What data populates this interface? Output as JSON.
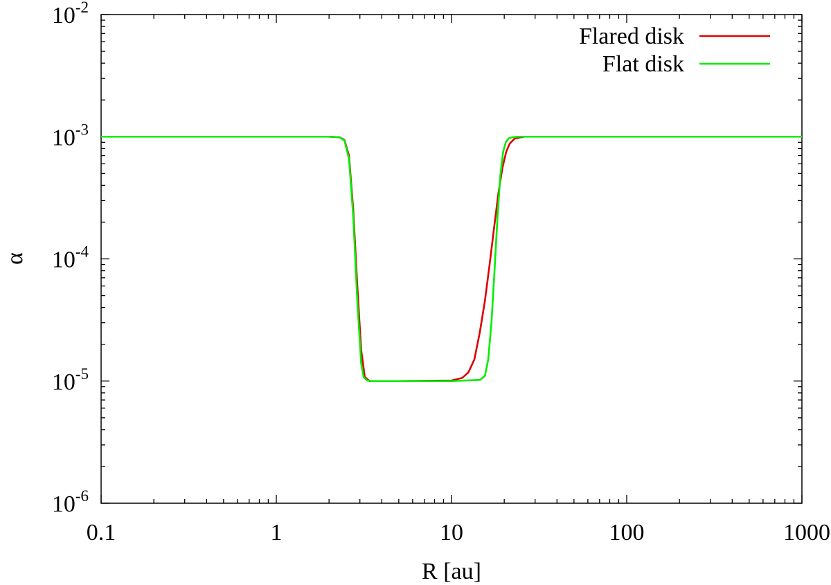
{
  "chart_data": {
    "type": "line",
    "title": "",
    "xlabel": "R [au]",
    "ylabel": "α",
    "xscale": "log",
    "yscale": "log",
    "xlim": [
      0.1,
      1000
    ],
    "ylim": [
      1e-06,
      0.01
    ],
    "grid": false,
    "legend_position": "top-right",
    "x_ticks": [
      {
        "value": 0.1,
        "label": "0.1"
      },
      {
        "value": 1,
        "label": "1"
      },
      {
        "value": 10,
        "label": "10"
      },
      {
        "value": 100,
        "label": "100"
      },
      {
        "value": 1000,
        "label": "1000"
      }
    ],
    "y_ticks": [
      {
        "value": 1e-06,
        "base": "10",
        "exp": "-6"
      },
      {
        "value": 1e-05,
        "base": "10",
        "exp": "-5"
      },
      {
        "value": 0.0001,
        "base": "10",
        "exp": "-4"
      },
      {
        "value": 0.001,
        "base": "10",
        "exp": "-3"
      },
      {
        "value": 0.01,
        "base": "10",
        "exp": "-2"
      }
    ],
    "series": [
      {
        "name": "Flared disk",
        "color": "#dd0000",
        "x": [
          0.1,
          1,
          2.0,
          2.3,
          2.45,
          2.6,
          2.75,
          2.9,
          3.05,
          3.2,
          3.4,
          5,
          10,
          11.5,
          12.5,
          13.5,
          14.5,
          15.5,
          16.5,
          17.5,
          18.5,
          19.5,
          20.5,
          21.5,
          23,
          26,
          100,
          1000
        ],
        "y": [
          0.001,
          0.001,
          0.001,
          0.00099,
          0.00094,
          0.0007,
          0.00025,
          6e-05,
          1.8e-05,
          1.08e-05,
          1e-05,
          1e-05,
          1.01e-05,
          1.06e-05,
          1.18e-05,
          1.5e-05,
          2.5e-05,
          4.5e-05,
          9e-05,
          0.00018,
          0.00034,
          0.00055,
          0.00075,
          0.00088,
          0.00097,
          0.001,
          0.001,
          0.001
        ]
      },
      {
        "name": "Flat disk",
        "color": "#00ee00",
        "x": [
          0.1,
          1,
          2.0,
          2.3,
          2.45,
          2.6,
          2.75,
          2.9,
          3.05,
          3.15,
          3.3,
          3.5,
          5,
          10,
          14.5,
          15.5,
          16.2,
          16.9,
          17.6,
          18.3,
          19.0,
          19.7,
          20.4,
          21.2,
          22.2,
          24,
          100,
          1000
        ],
        "y": [
          0.001,
          0.001,
          0.001,
          0.00099,
          0.00093,
          0.00066,
          0.00022,
          4.5e-05,
          1.4e-05,
          1.08e-05,
          1.01e-05,
          1e-05,
          1e-05,
          1e-05,
          1.02e-05,
          1.1e-05,
          1.5e-05,
          3e-05,
          8e-05,
          0.00022,
          0.00048,
          0.00075,
          0.0009,
          0.00097,
          0.00099,
          0.001,
          0.001,
          0.001
        ]
      }
    ]
  }
}
